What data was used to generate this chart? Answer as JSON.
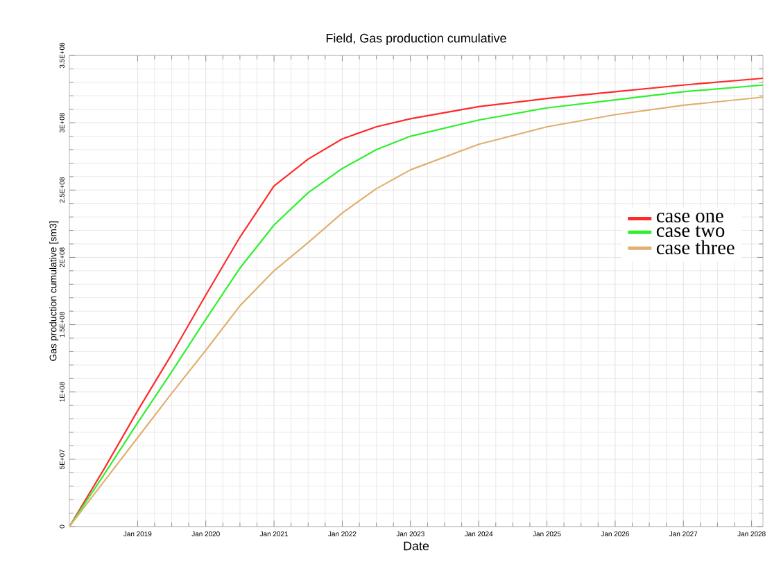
{
  "chart_data": {
    "type": "line",
    "title": "Field, Gas production cumulative",
    "xlabel": "Date",
    "ylabel": "Gas production cumulative [sm3]",
    "x": [
      "2018-01",
      "2018-07",
      "2019-01",
      "2019-07",
      "2020-01",
      "2020-07",
      "2021-01",
      "2021-07",
      "2022-01",
      "2022-07",
      "2023-01",
      "2024-01",
      "2025-01",
      "2026-01",
      "2027-01",
      "2028-03"
    ],
    "series": [
      {
        "name": "case one",
        "color": "#ff2a2a",
        "values": [
          0,
          42000000,
          86000000,
          128000000,
          172000000,
          215000000,
          253000000,
          273000000,
          288000000,
          297000000,
          303000000,
          312000000,
          318000000,
          323000000,
          328000000,
          333000000
        ]
      },
      {
        "name": "case two",
        "color": "#2ef02e",
        "values": [
          0,
          38000000,
          77000000,
          115000000,
          154000000,
          192000000,
          224000000,
          248000000,
          266000000,
          280000000,
          290000000,
          302000000,
          311000000,
          317000000,
          323000000,
          328000000
        ]
      },
      {
        "name": "case three",
        "color": "#e0b070",
        "values": [
          0,
          33000000,
          66000000,
          99000000,
          131000000,
          164000000,
          190000000,
          211000000,
          233000000,
          251000000,
          265000000,
          284000000,
          297000000,
          306000000,
          313000000,
          319000000
        ]
      }
    ],
    "xlim": [
      "2018-01",
      "2028-03"
    ],
    "xticks": [
      {
        "value": "2019-01",
        "label": "Jan 2019"
      },
      {
        "value": "2020-01",
        "label": "Jan 2020"
      },
      {
        "value": "2021-01",
        "label": "Jan 2021"
      },
      {
        "value": "2022-01",
        "label": "Jan 2022"
      },
      {
        "value": "2023-01",
        "label": "Jan 2023"
      },
      {
        "value": "2024-01",
        "label": "Jan 2024"
      },
      {
        "value": "2025-01",
        "label": "Jan 2025"
      },
      {
        "value": "2026-01",
        "label": "Jan 2026"
      },
      {
        "value": "2027-01",
        "label": "Jan 2027"
      },
      {
        "value": "2028-01",
        "label": "Jan 2028"
      }
    ],
    "ylim": [
      0,
      350000000
    ],
    "yticks": [
      0,
      {
        "value": 50000000,
        "label": "5E+07"
      },
      {
        "value": 100000000,
        "label": "1E+08"
      },
      {
        "value": 150000000,
        "label": "1.5E+08"
      },
      {
        "value": 200000000,
        "label": "2E+08"
      },
      {
        "value": 250000000,
        "label": "2.5E+08"
      },
      {
        "value": 300000000,
        "label": "3E+08"
      },
      {
        "value": 350000000,
        "label": "3.5E+08"
      }
    ],
    "grid": true,
    "legend": "right",
    "line_style": "solid",
    "marker": "none"
  }
}
